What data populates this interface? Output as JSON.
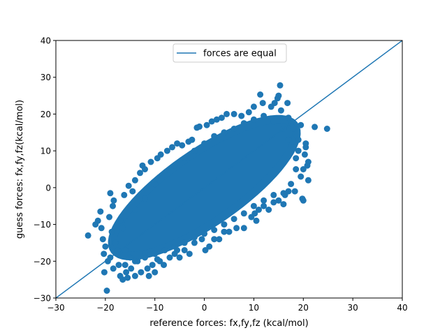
{
  "chart_data": {
    "type": "scatter",
    "xlabel": "reference forces: fx,fy,fz (kcal/mol)",
    "ylabel": "guess forces: fx,fy,fz(kcal/mol)",
    "xlim": [
      -30,
      40
    ],
    "ylim": [
      -30,
      40
    ],
    "xticks": [
      -30,
      -20,
      -10,
      0,
      10,
      20,
      30,
      40
    ],
    "yticks": [
      -30,
      -20,
      -10,
      0,
      10,
      20,
      30,
      40
    ],
    "grid": false,
    "legend_position": "top-center",
    "color": "#1f77b4",
    "series": [
      {
        "type": "scatter",
        "points": [
          [
            -23.5,
            -13
          ],
          [
            -22,
            -10
          ],
          [
            -21.5,
            -9
          ],
          [
            -21,
            -6.5
          ],
          [
            -20.8,
            -11
          ],
          [
            -20.5,
            -14
          ],
          [
            -20.3,
            -18
          ],
          [
            -20,
            -16
          ],
          [
            -19.5,
            -20
          ],
          [
            -19.7,
            -28
          ],
          [
            -20.2,
            -23
          ],
          [
            -19,
            -19
          ],
          [
            -19.2,
            -8
          ],
          [
            -18.7,
            -12
          ],
          [
            -18.4,
            -22
          ],
          [
            -18.5,
            -5
          ],
          [
            -19,
            -1.5
          ],
          [
            -18.3,
            -3.5
          ],
          [
            -18,
            -15
          ],
          [
            -17.5,
            -18
          ],
          [
            -17,
            -24
          ],
          [
            -17.3,
            -21
          ],
          [
            -16.5,
            -25
          ],
          [
            -16.2,
            -2
          ],
          [
            -15.8,
            -23
          ],
          [
            -15.5,
            -24.5
          ],
          [
            -15.3,
            0.5
          ],
          [
            -14.8,
            -22
          ],
          [
            -14.5,
            -1
          ],
          [
            -14,
            -24
          ],
          [
            -14,
            2
          ],
          [
            -13.5,
            -20
          ],
          [
            -13,
            4
          ],
          [
            -12.8,
            -23
          ],
          [
            -12.5,
            6
          ],
          [
            -12,
            5
          ],
          [
            -11.5,
            -22
          ],
          [
            -11.2,
            -24
          ],
          [
            -10.8,
            7
          ],
          [
            -10.5,
            -21
          ],
          [
            -10,
            -23
          ],
          [
            -9.5,
            8
          ],
          [
            -9,
            -20
          ],
          [
            -8.8,
            9
          ],
          [
            -8.2,
            -21
          ],
          [
            -7.5,
            10
          ],
          [
            -7,
            -19
          ],
          [
            -6.5,
            11
          ],
          [
            -6,
            -18
          ],
          [
            -5.5,
            12
          ],
          [
            -5,
            -19
          ],
          [
            -4.5,
            11.5
          ],
          [
            -4,
            -17
          ],
          [
            -3.2,
            12.5
          ],
          [
            -3,
            -18
          ],
          [
            -2.5,
            13
          ],
          [
            -2,
            -15
          ],
          [
            -1.5,
            16.3
          ],
          [
            -1,
            16.6
          ],
          [
            -0.5,
            -14
          ],
          [
            0.2,
            -17
          ],
          [
            0.5,
            17
          ],
          [
            1,
            -16
          ],
          [
            1.5,
            18
          ],
          [
            2,
            -14
          ],
          [
            2.5,
            18.5
          ],
          [
            3,
            -14
          ],
          [
            3.5,
            19
          ],
          [
            4,
            -12
          ],
          [
            4.5,
            20
          ],
          [
            5,
            -12
          ],
          [
            6,
            20
          ],
          [
            6.5,
            -11
          ],
          [
            7.5,
            19.5
          ],
          [
            8,
            -11
          ],
          [
            9,
            20.5
          ],
          [
            9.5,
            -8
          ],
          [
            10,
            22
          ],
          [
            10.2,
            -7
          ],
          [
            10.5,
            -9
          ],
          [
            11,
            -6
          ],
          [
            11.3,
            25.3
          ],
          [
            11.8,
            23
          ],
          [
            12,
            -5
          ],
          [
            13,
            -6
          ],
          [
            13.5,
            22
          ],
          [
            14,
            -4
          ],
          [
            14.2,
            23
          ],
          [
            14.8,
            24.3
          ],
          [
            15,
            25
          ],
          [
            15.3,
            27.8
          ],
          [
            15,
            -3.5
          ],
          [
            15.5,
            21
          ],
          [
            16,
            -4.5
          ],
          [
            16.3,
            -2
          ],
          [
            16.8,
            23
          ],
          [
            17,
            19
          ],
          [
            17,
            -1
          ],
          [
            17.5,
            17
          ],
          [
            18,
            16
          ],
          [
            18.3,
            -1
          ],
          [
            18.7,
            14
          ],
          [
            19,
            13
          ],
          [
            19.5,
            17
          ],
          [
            19.5,
            3
          ],
          [
            19.8,
            -3
          ],
          [
            20,
            -3.5
          ],
          [
            20.3,
            9
          ],
          [
            20.5,
            11
          ],
          [
            20.8,
            6
          ],
          [
            21,
            7
          ],
          [
            22.3,
            16.5
          ],
          [
            24.8,
            16
          ],
          [
            21,
            2
          ],
          [
            20,
            5
          ],
          [
            18.5,
            8
          ],
          [
            19,
            10
          ],
          [
            20.5,
            12
          ],
          [
            -17,
            -9
          ],
          [
            -16,
            -17
          ],
          [
            -15,
            -19
          ],
          [
            -12,
            -18
          ],
          [
            -9.5,
            -19.5
          ],
          [
            -5.5,
            -17
          ],
          [
            -16.5,
            -11
          ],
          [
            -14,
            -6
          ],
          [
            -12,
            -3
          ],
          [
            -10,
            1
          ],
          [
            -8,
            3.5
          ],
          [
            -6,
            6
          ],
          [
            -4,
            8
          ],
          [
            -2,
            10
          ],
          [
            0,
            12
          ],
          [
            2,
            14
          ],
          [
            4,
            15
          ],
          [
            6,
            16
          ],
          [
            8,
            17.5
          ],
          [
            10,
            18.5
          ],
          [
            12,
            19.5
          ],
          [
            14,
            18
          ],
          [
            16,
            16
          ],
          [
            17,
            13
          ],
          [
            18,
            11
          ],
          [
            18.5,
            5
          ],
          [
            17.5,
            1
          ],
          [
            16,
            -1.5
          ],
          [
            14,
            -2
          ],
          [
            12,
            -3.5
          ],
          [
            10,
            -5
          ],
          [
            8,
            -7
          ],
          [
            6,
            -8.5
          ],
          [
            4,
            -10
          ],
          [
            2,
            -11.5
          ],
          [
            0,
            -12.5
          ],
          [
            -2,
            -13.5
          ],
          [
            -4,
            -15
          ],
          [
            -6,
            -16
          ],
          [
            -8,
            -17
          ],
          [
            -10,
            -18
          ],
          [
            -12,
            -19
          ],
          [
            -14,
            -20
          ],
          [
            -16,
            -21
          ],
          [
            -17.5,
            -17
          ]
        ]
      }
    ],
    "reference_line": {
      "name": "forces are equal",
      "points": [
        [
          -30,
          -30
        ],
        [
          40,
          40
        ]
      ]
    }
  }
}
